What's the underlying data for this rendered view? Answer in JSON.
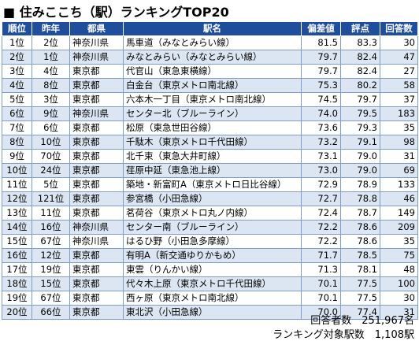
{
  "header": {
    "title": "■ 住みここち（駅）ランキングTOP20"
  },
  "table": {
    "columns": [
      "順位",
      "昨年",
      "都県",
      "駅名",
      "偏差値",
      "評点",
      "回答数"
    ],
    "rows": [
      [
        "1位",
        "2位",
        "神奈川県",
        "馬車道（みなとみらい線）",
        "81.5",
        "83.3",
        "30"
      ],
      [
        "2位",
        "1位",
        "神奈川県",
        "みなとみらい（みなとみらい線）",
        "79.7",
        "82.4",
        "47"
      ],
      [
        "3位",
        "4位",
        "東京都",
        "代官山（東急東横線）",
        "79.7",
        "82.4",
        "27"
      ],
      [
        "4位",
        "8位",
        "東京都",
        "白金台（東京メトロ南北線）",
        "75.3",
        "80.2",
        "58"
      ],
      [
        "5位",
        "3位",
        "東京都",
        "六本木一丁目（東京メトロ南北線）",
        "74.5",
        "79.7",
        "37"
      ],
      [
        "6位",
        "9位",
        "神奈川県",
        "センター北（ブルーライン）",
        "74.0",
        "79.5",
        "183"
      ],
      [
        "7位",
        "6位",
        "東京都",
        "松原（東急世田谷線）",
        "73.6",
        "79.3",
        "35"
      ],
      [
        "8位",
        "10位",
        "東京都",
        "千駄木（東京メトロ千代田線）",
        "73.2",
        "79.1",
        "98"
      ],
      [
        "9位",
        "70位",
        "東京都",
        "北千束（東急大井町線）",
        "73.1",
        "79.0",
        "31"
      ],
      [
        "10位",
        "24位",
        "東京都",
        "荏原中延（東急池上線）",
        "73.0",
        "79.0",
        "69"
      ],
      [
        "11位",
        "5位",
        "東京都",
        "築地・新富町A（東京メトロ日比谷線）",
        "72.9",
        "78.9",
        "133"
      ],
      [
        "12位",
        "121位",
        "東京都",
        "参宮橋（小田急線）",
        "72.7",
        "78.8",
        "46"
      ],
      [
        "13位",
        "11位",
        "東京都",
        "茗荷谷（東京メトロ丸ノ内線）",
        "72.4",
        "78.7",
        "149"
      ],
      [
        "14位",
        "16位",
        "神奈川県",
        "センター南（ブルーライン）",
        "72.2",
        "78.6",
        "209"
      ],
      [
        "15位",
        "67位",
        "神奈川県",
        "はるひ野（小田急多摩線）",
        "72.2",
        "78.6",
        "35"
      ],
      [
        "16位",
        "12位",
        "東京都",
        "有明A（新交通ゆりかもめ）",
        "71.7",
        "78.5",
        "75"
      ],
      [
        "17位",
        "19位",
        "東京都",
        "東雲（りんかい線）",
        "71.3",
        "78.1",
        "48"
      ],
      [
        "18位",
        "15位",
        "東京都",
        "代々木上原（東京メトロ千代田線）",
        "70.1",
        "77.5",
        "100"
      ],
      [
        "19位",
        "67位",
        "東京都",
        "西ヶ原（東京メトロ南北線）",
        "70.1",
        "77.5",
        "30"
      ],
      [
        "20位",
        "66位",
        "東京都",
        "東北沢（小田急線）",
        "70.0",
        "77.4",
        "31"
      ]
    ]
  },
  "footer": {
    "respondents": "回答者数　251,967名",
    "stations": "ランキング対象駅数　1,108駅"
  }
}
